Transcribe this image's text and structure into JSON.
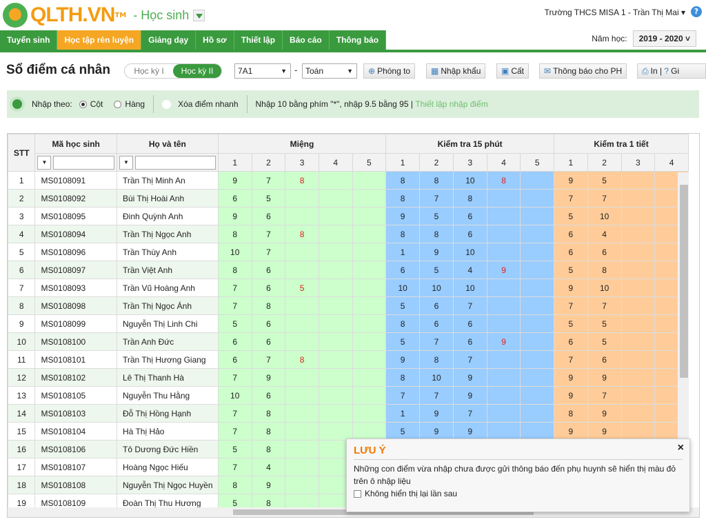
{
  "header": {
    "logo": "QLTH.VN",
    "tm": "TM",
    "role": "- Học sinh",
    "user": "Trường THCS MISA 1 - Trần Thị Mai",
    "help": "?"
  },
  "nav": {
    "tabs": [
      "Tuyển sinh",
      "Học tập rèn luyện",
      "Giảng dạy",
      "Hồ sơ",
      "Thiết lập",
      "Báo cáo",
      "Thông báo"
    ],
    "active": 1,
    "year_label": "Năm học:",
    "year": "2019 - 2020"
  },
  "toolbar": {
    "title": "Sổ điểm cá nhân",
    "term1": "Học kỳ I",
    "term2": "Học kỳ II",
    "class": "7A1",
    "dash": "-",
    "subject": "Toán",
    "zoom": "Phóng to",
    "import": "Nhập khẩu",
    "save": "Cất",
    "notify": "Thông báo cho PH",
    "print": "In",
    "guide": "Gi"
  },
  "hint": {
    "input_by": "Nhập theo:",
    "col": "Cột",
    "row": "Hàng",
    "quick_clear": "Xóa điểm nhanh",
    "tip": "Nhập 10 bằng phím \"*\", nhập 9.5 bằng 95 |",
    "link": "Thiết lập nhập điểm"
  },
  "colors": {
    "green": "#3a9a3e",
    "orange": "#f5a623",
    "mieng": "#ccffcc",
    "kt15": "#99ccff",
    "kt1t": "#ffcc99",
    "unsent": "#e02020"
  },
  "table": {
    "headers": {
      "stt": "STT",
      "code": "Mã học sinh",
      "name": "Họ và tên",
      "mieng": "Miệng",
      "kt15": "Kiểm tra 15 phút",
      "kt1t": "Kiểm tra 1 tiết"
    },
    "sub_mieng": [
      "1",
      "2",
      "3",
      "4",
      "5"
    ],
    "sub_kt15": [
      "1",
      "2",
      "3",
      "4",
      "5"
    ],
    "sub_kt1t": [
      "1",
      "2",
      "3",
      "4"
    ],
    "rows": [
      {
        "stt": "1",
        "code": "MS0108091",
        "name": "Trần Thị Minh An",
        "m": [
          "9",
          "7",
          {
            "v": "8",
            "unsent": true
          },
          "",
          ""
        ],
        "k": [
          "8",
          "8",
          "10",
          {
            "v": "8",
            "unsent": true
          },
          ""
        ],
        "t": [
          "9",
          "5",
          "",
          ""
        ]
      },
      {
        "stt": "2",
        "code": "MS0108092",
        "name": "Bùi Thị Hoài Anh",
        "m": [
          "6",
          "5",
          "",
          "",
          ""
        ],
        "k": [
          "8",
          "7",
          "8",
          "",
          ""
        ],
        "t": [
          "7",
          "7",
          "",
          ""
        ]
      },
      {
        "stt": "3",
        "code": "MS0108095",
        "name": "Đinh Quỳnh Anh",
        "m": [
          "9",
          "6",
          "",
          "",
          ""
        ],
        "k": [
          "9",
          "5",
          "6",
          "",
          ""
        ],
        "t": [
          "5",
          "10",
          "",
          ""
        ]
      },
      {
        "stt": "4",
        "code": "MS0108094",
        "name": "Trần Thị Ngọc Anh",
        "m": [
          "8",
          "7",
          {
            "v": "8",
            "unsent": true
          },
          "",
          ""
        ],
        "k": [
          "8",
          "8",
          "6",
          "",
          ""
        ],
        "t": [
          "6",
          "4",
          "",
          ""
        ]
      },
      {
        "stt": "5",
        "code": "MS0108096",
        "name": "Trần Thùy Anh",
        "m": [
          "10",
          "7",
          "",
          "",
          ""
        ],
        "k": [
          "1",
          "9",
          "10",
          "",
          ""
        ],
        "t": [
          "6",
          "6",
          "",
          ""
        ]
      },
      {
        "stt": "6",
        "code": "MS0108097",
        "name": "Trần Việt Anh",
        "m": [
          "8",
          "6",
          "",
          "",
          ""
        ],
        "k": [
          "6",
          "5",
          "4",
          {
            "v": "9",
            "unsent": true
          },
          ""
        ],
        "t": [
          "5",
          "8",
          "",
          ""
        ]
      },
      {
        "stt": "7",
        "code": "MS0108093",
        "name": "Trần Vũ Hoàng Anh",
        "m": [
          "7",
          "6",
          {
            "v": "5",
            "unsent": true
          },
          "",
          ""
        ],
        "k": [
          "10",
          "10",
          "10",
          "",
          ""
        ],
        "t": [
          "9",
          "10",
          "",
          ""
        ]
      },
      {
        "stt": "8",
        "code": "MS0108098",
        "name": "Trần Thị Ngọc Ánh",
        "m": [
          "7",
          "8",
          "",
          "",
          ""
        ],
        "k": [
          "5",
          "6",
          "7",
          "",
          ""
        ],
        "t": [
          "7",
          "7",
          "",
          ""
        ]
      },
      {
        "stt": "9",
        "code": "MS0108099",
        "name": "Nguyễn Thị Linh Chi",
        "m": [
          "5",
          "6",
          "",
          "",
          ""
        ],
        "k": [
          "8",
          "6",
          "6",
          "",
          ""
        ],
        "t": [
          "5",
          "5",
          "",
          ""
        ]
      },
      {
        "stt": "10",
        "code": "MS0108100",
        "name": "Trần Anh Đức",
        "m": [
          "6",
          "6",
          "",
          "",
          ""
        ],
        "k": [
          "5",
          "7",
          "6",
          {
            "v": "9",
            "unsent": true
          },
          ""
        ],
        "t": [
          "6",
          "5",
          "",
          ""
        ]
      },
      {
        "stt": "11",
        "code": "MS0108101",
        "name": "Trần Thị Hương Giang",
        "m": [
          "6",
          "7",
          {
            "v": "8",
            "unsent": true
          },
          "",
          ""
        ],
        "k": [
          "9",
          "8",
          "7",
          "",
          ""
        ],
        "t": [
          "7",
          "6",
          "",
          ""
        ]
      },
      {
        "stt": "12",
        "code": "MS0108102",
        "name": "Lê Thị Thanh Hà",
        "m": [
          "7",
          "9",
          "",
          "",
          ""
        ],
        "k": [
          "8",
          "10",
          "9",
          "",
          ""
        ],
        "t": [
          "9",
          "9",
          "",
          ""
        ]
      },
      {
        "stt": "13",
        "code": "MS0108105",
        "name": "Nguyễn Thu Hằng",
        "m": [
          "10",
          "6",
          "",
          "",
          ""
        ],
        "k": [
          "7",
          "7",
          "9",
          "",
          ""
        ],
        "t": [
          "9",
          "7",
          "",
          ""
        ]
      },
      {
        "stt": "14",
        "code": "MS0108103",
        "name": "Đỗ Thị Hồng Hạnh",
        "m": [
          "7",
          "8",
          "",
          "",
          ""
        ],
        "k": [
          "1",
          "9",
          "7",
          "",
          ""
        ],
        "t": [
          "8",
          "9",
          "",
          ""
        ]
      },
      {
        "stt": "15",
        "code": "MS0108104",
        "name": "Hà Thị Hảo",
        "m": [
          "7",
          "8",
          "",
          "",
          ""
        ],
        "k": [
          "5",
          "9",
          "9",
          "",
          ""
        ],
        "t": [
          "9",
          "9",
          "",
          ""
        ]
      },
      {
        "stt": "16",
        "code": "MS0108106",
        "name": "Tô Dương Đức Hiền",
        "m": [
          "5",
          "8",
          "",
          "",
          ""
        ],
        "k": [
          "",
          "",
          "",
          "",
          ""
        ],
        "t": [
          "",
          "",
          "",
          ""
        ]
      },
      {
        "stt": "17",
        "code": "MS0108107",
        "name": "Hoàng Ngọc Hiếu",
        "m": [
          "7",
          "4",
          "",
          "",
          ""
        ],
        "k": [
          "",
          "",
          "",
          "",
          ""
        ],
        "t": [
          "",
          "",
          "",
          ""
        ]
      },
      {
        "stt": "18",
        "code": "MS0108108",
        "name": "Nguyễn Thị Ngọc Huyền",
        "m": [
          "8",
          "9",
          "",
          "",
          ""
        ],
        "k": [
          "",
          "",
          "",
          "",
          ""
        ],
        "t": [
          "",
          "",
          "",
          ""
        ]
      },
      {
        "stt": "19",
        "code": "MS0108109",
        "name": "Đoàn Thị Thu Hương",
        "m": [
          "5",
          "8",
          "",
          "",
          ""
        ],
        "k": [
          "",
          "",
          "",
          "",
          ""
        ],
        "t": [
          "",
          "",
          "",
          ""
        ]
      }
    ]
  },
  "popup": {
    "title": "LƯU Ý",
    "close": "×",
    "message": "Những con điểm vừa nhập chưa được gửi thông báo đến phụ huynh sẽ hiển thị màu đỏ trên ô nhập liệu",
    "checkbox": "Không hiển thị lại lần sau"
  }
}
